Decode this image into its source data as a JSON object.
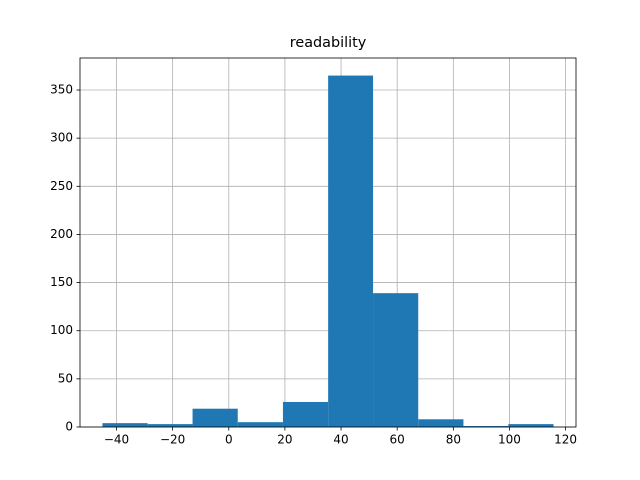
{
  "chart_data": {
    "type": "histogram",
    "title": "readability",
    "bins": [
      -45,
      -28.9,
      -12.9,
      3.2,
      19.3,
      35.4,
      51.4,
      67.5,
      83.6,
      99.6,
      115.7
    ],
    "values": [
      4,
      3,
      19,
      5,
      26,
      365,
      139,
      8,
      1,
      3
    ],
    "color": "#1f77b4",
    "xlim": [
      -53.0,
      123.7
    ],
    "xticks": [
      {
        "value": -40,
        "label": "−40"
      },
      {
        "value": -20,
        "label": "−20"
      },
      0,
      20,
      40,
      60,
      80,
      100,
      120
    ],
    "ylim": [
      0,
      383.25
    ],
    "yticks": [
      0,
      50,
      100,
      150,
      200,
      250,
      300,
      350
    ],
    "grid": true
  }
}
